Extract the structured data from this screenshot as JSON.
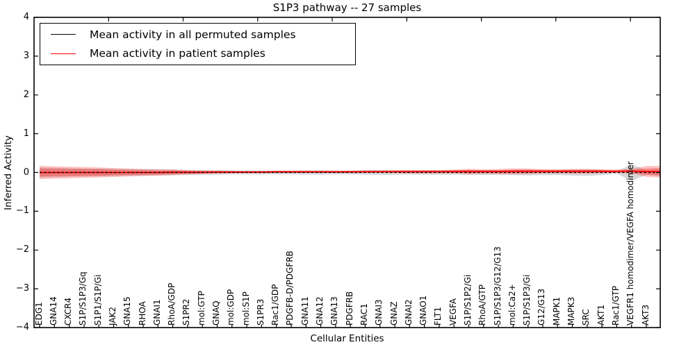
{
  "chart_data": {
    "type": "line",
    "title": "S1P3 pathway -- 27 samples",
    "xlabel": "Cellular Entities",
    "ylabel": "Inferred Activity",
    "ylim": [
      -4,
      4
    ],
    "ytick_values": [
      4,
      3,
      2,
      1,
      0,
      -1,
      -2,
      -3,
      -4
    ],
    "ytick_labels": [
      "4",
      "3",
      "2",
      "1",
      "0",
      "−1",
      "−2",
      "−3",
      "−4"
    ],
    "grid": false,
    "legend_position": "upper left",
    "categories": [
      "EDG1",
      "GNA14",
      "CXCR4",
      "S1P/S1P3/Gq",
      "S1P1/S1P/Gi",
      "JAK2",
      "GNA15",
      "RHOA",
      "GNAI1",
      "RhoA/GDP",
      "S1PR2",
      "mol:GTP",
      "GNAQ",
      "mol:GDP",
      "mol:S1P",
      "S1PR3",
      "Rac1/GDP",
      "PDGFB-D/PDGFRB",
      "GNA11",
      "GNA12",
      "GNA13",
      "PDGFRB",
      "RAC1",
      "GNAI3",
      "GNAZ",
      "GNAI2",
      "GNAO1",
      "FLT1",
      "VEGFA",
      "S1P/S1P2/Gi",
      "RhoA/GTP",
      "S1P/S1P3/G12/G13",
      "mol:Ca2+",
      "S1P/S1P3/Gi",
      "G12/G13",
      "MAPK1",
      "MAPK3",
      "SRC",
      "AKT1",
      "Rac1/GTP",
      "VEGFR1 homodimer/VEGFA homodimer",
      "AKT3"
    ],
    "series": [
      {
        "name": "Mean activity in all permuted samples",
        "color": "#000000",
        "line_style": "dashed",
        "values": [
          0,
          0,
          0,
          0,
          0,
          0,
          0,
          0,
          0,
          0,
          0,
          0,
          0,
          0,
          0,
          0,
          0,
          0,
          0,
          0,
          0,
          0,
          0,
          0,
          0,
          0,
          0,
          0,
          0,
          0,
          0,
          0,
          0,
          0,
          0,
          0,
          0,
          0,
          0,
          0,
          0,
          0
        ]
      },
      {
        "name": "Mean activity in patient samples",
        "color": "#ff0000",
        "line_style": "solid",
        "values": [
          0,
          0,
          0,
          0,
          0,
          0,
          0,
          0,
          0,
          0.005,
          0.005,
          0.005,
          0.01,
          0.01,
          0.01,
          0.01,
          0.015,
          0.015,
          0.015,
          0.015,
          0.015,
          0.015,
          0.02,
          0.02,
          0.02,
          0.02,
          0.02,
          0.02,
          0.025,
          0.025,
          0.025,
          0.025,
          0.03,
          0.03,
          0.03,
          0.03,
          0.03,
          0.03,
          0.03,
          0.03,
          0.035,
          0.025
        ]
      }
    ],
    "bands": {
      "permuted_std": [
        0.13,
        0.12,
        0.11,
        0.105,
        0.1,
        0.095,
        0.09,
        0.085,
        0.08,
        0.075,
        0.065,
        0.06,
        0.055,
        0.05,
        0.05,
        0.05,
        0.05,
        0.05,
        0.055,
        0.055,
        0.05,
        0.05,
        0.06,
        0.065,
        0.06,
        0.055,
        0.06,
        0.06,
        0.055,
        0.06,
        0.065,
        0.06,
        0.07,
        0.075,
        0.07,
        0.065,
        0.08,
        0.09,
        0.07,
        0.03,
        0.21,
        0.06
      ],
      "patient_std_outer": [
        0.17,
        0.16,
        0.15,
        0.14,
        0.13,
        0.115,
        0.1,
        0.09,
        0.08,
        0.07,
        0.055,
        0.045,
        0.04,
        0.035,
        0.03,
        0.03,
        0.03,
        0.03,
        0.03,
        0.03,
        0.03,
        0.03,
        0.03,
        0.03,
        0.035,
        0.04,
        0.04,
        0.04,
        0.05,
        0.07,
        0.055,
        0.065,
        0.075,
        0.07,
        0.055,
        0.05,
        0.06,
        0.06,
        0.05,
        0.045,
        0.06,
        0.14
      ],
      "patient_std_inner": [
        0.1,
        0.095,
        0.09,
        0.085,
        0.08,
        0.07,
        0.06,
        0.055,
        0.05,
        0.045,
        0.035,
        0.03,
        0.025,
        0.02,
        0.02,
        0.02,
        0.02,
        0.02,
        0.02,
        0.02,
        0.02,
        0.02,
        0.02,
        0.02,
        0.02,
        0.025,
        0.025,
        0.025,
        0.03,
        0.04,
        0.03,
        0.035,
        0.04,
        0.04,
        0.03,
        0.03,
        0.035,
        0.035,
        0.03,
        0.025,
        0.035,
        0.08
      ],
      "right_edge": {
        "permuted_mean": 0,
        "patient_mean": 0.02,
        "permuted_std": 0.1,
        "patient_std_outer": 0.15,
        "patient_std_inner": 0.09
      }
    },
    "colors": {
      "frame": "#000000",
      "gray_band": "#d9d9d9",
      "red_band_outer": "#f6abab",
      "red_band_inner": "#ee7e7e",
      "patient_line": "#ff0000",
      "permuted_line": "#000000"
    }
  }
}
